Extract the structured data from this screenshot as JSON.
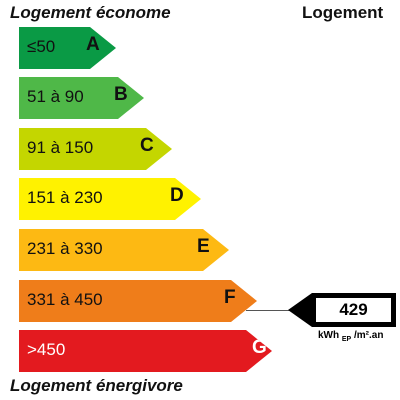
{
  "labels": {
    "top_left": "Logement économe",
    "top_right": "Logement",
    "bottom": "Logement énergivore"
  },
  "bands": [
    {
      "range": "≤50",
      "letter": "A",
      "color": "#0a9a45"
    },
    {
      "range": "51 à 90",
      "letter": "B",
      "color": "#4fb848"
    },
    {
      "range": "91 à 150",
      "letter": "C",
      "color": "#c4d600"
    },
    {
      "range": "151 à 230",
      "letter": "D",
      "color": "#fff200"
    },
    {
      "range": "231 à 330",
      "letter": "E",
      "color": "#fdb913"
    },
    {
      "range": "331 à 450",
      "letter": "F",
      "color": "#ef7d1a"
    },
    {
      "range": ">450",
      "letter": "G",
      "color": "#e31a1f"
    }
  ],
  "indicator": {
    "value": "429",
    "unit_main": "kWh",
    "unit_sub": "EP",
    "unit_tail": "/m².an",
    "band": "F"
  }
}
